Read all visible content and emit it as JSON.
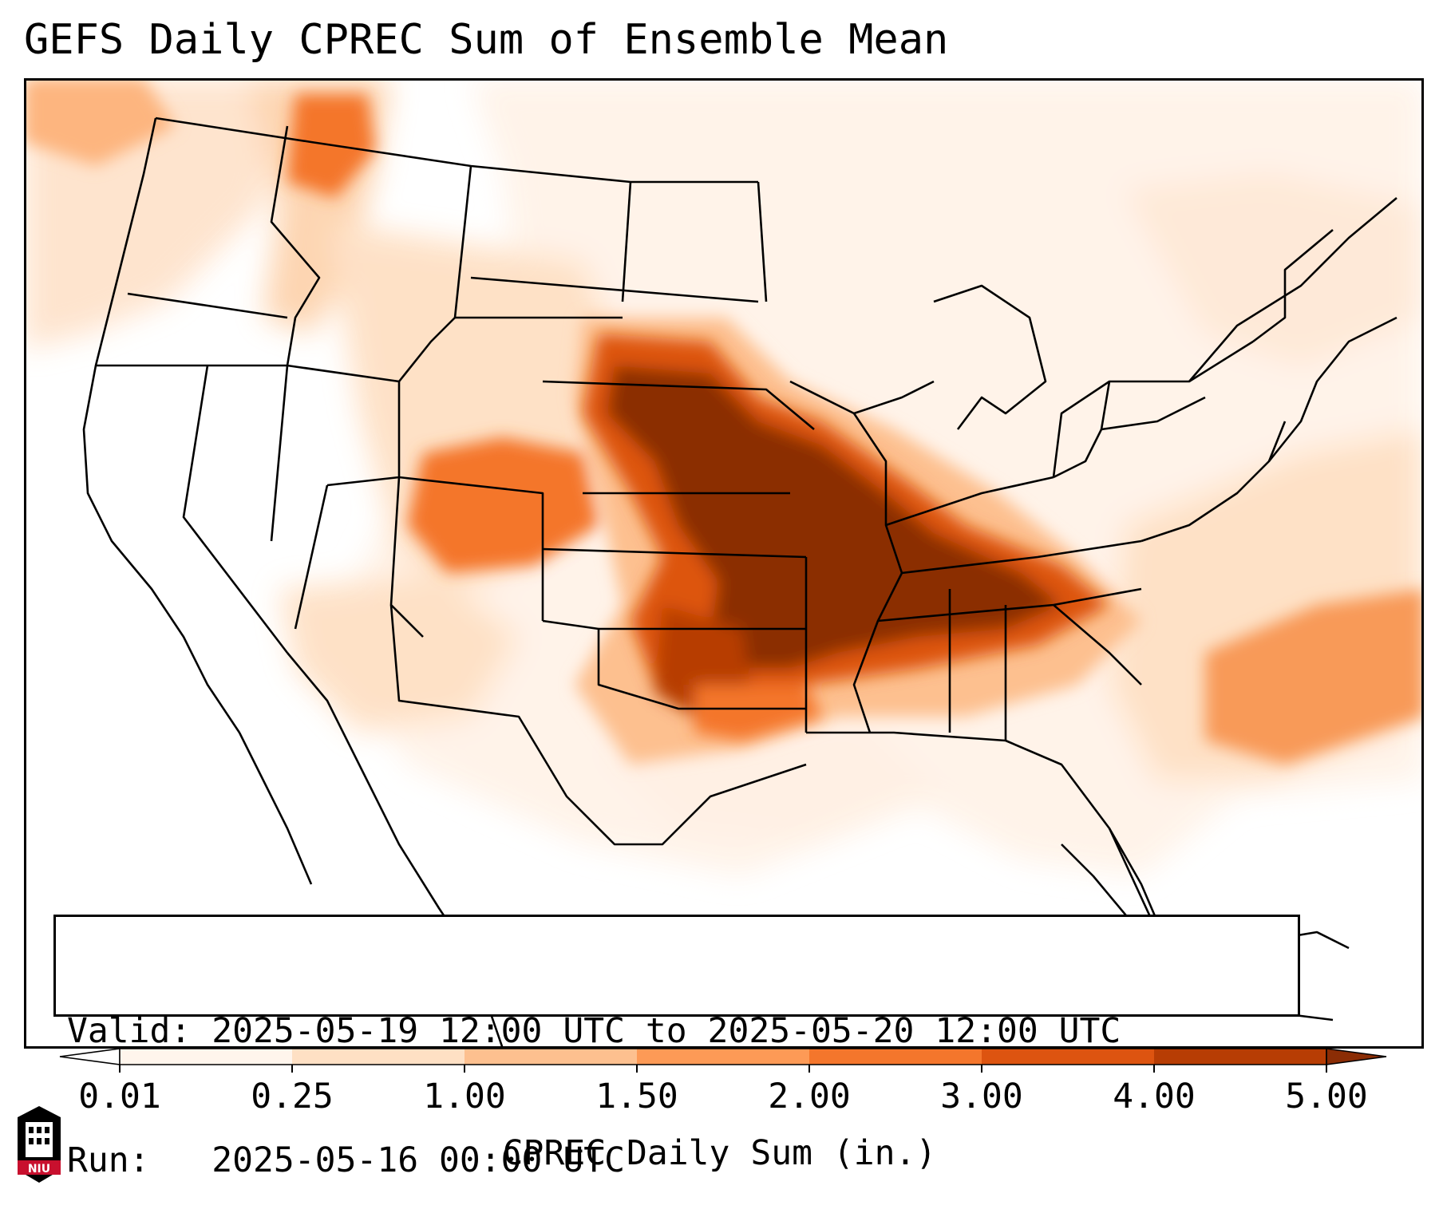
{
  "title": "GEFS Daily CPREC Sum of Ensemble Mean",
  "info": {
    "valid_label": "Valid:",
    "valid_value": "2025-05-19 12:00 UTC to 2025-05-20 12:00 UTC",
    "run_label": "Run:",
    "run_value": "2025-05-16 00:00 UTC"
  },
  "colorbar": {
    "label": "CPREC Daily Sum (in.)",
    "ticks": [
      "0.01",
      "0.25",
      "1.00",
      "1.50",
      "2.00",
      "3.00",
      "4.00",
      "5.00"
    ],
    "under_color": "#ffffff",
    "over_color": "#8b2d05",
    "colors": [
      "#fff5ec",
      "#fee0c4",
      "#fdc08f",
      "#fd9a56",
      "#f4762c",
      "#dd5410",
      "#b73d04"
    ]
  },
  "colors": {
    "map_background": "#ffffff",
    "borders": "#000000"
  },
  "logo": {
    "text": "NIU",
    "accent": "#c8102e"
  }
}
